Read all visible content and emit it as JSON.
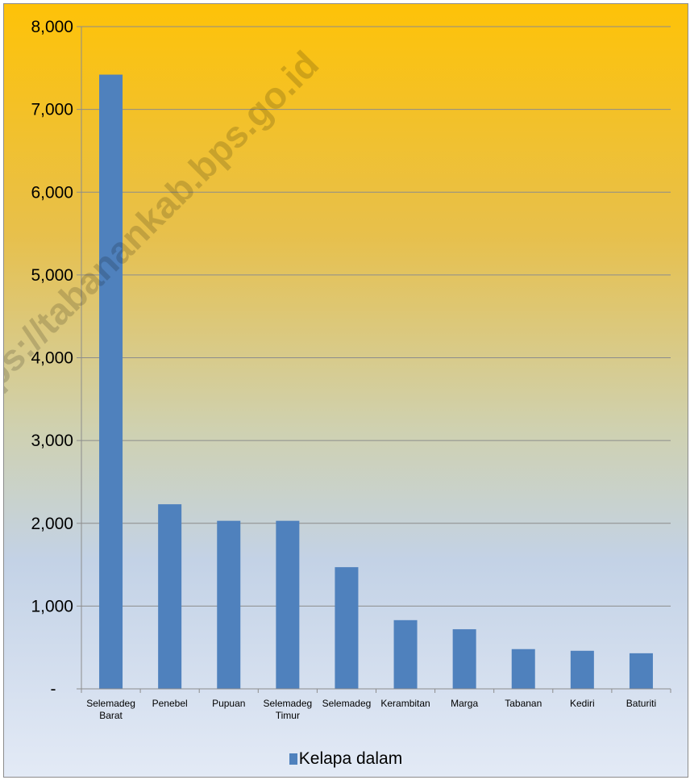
{
  "watermark": "https://tabanankab.bps.go.id",
  "chart_data": {
    "type": "bar",
    "categories": [
      [
        "Selemadeg",
        "Barat"
      ],
      [
        "Penebel"
      ],
      [
        "Pupuan"
      ],
      [
        "Selemadeg",
        "Timur"
      ],
      [
        "Selemadeg"
      ],
      [
        "Kerambitan"
      ],
      [
        "Marga"
      ],
      [
        "Tabanan"
      ],
      [
        "Kediri"
      ],
      [
        "Baturiti"
      ]
    ],
    "series": [
      {
        "name": "Kelapa dalam",
        "color": "#4f81bd",
        "values": [
          7420,
          2230,
          2030,
          2030,
          1470,
          830,
          720,
          480,
          460,
          430
        ]
      }
    ],
    "ylim": [
      0,
      8000
    ],
    "yticks": [
      0,
      1000,
      2000,
      3000,
      4000,
      5000,
      6000,
      7000,
      8000
    ],
    "ytick_labels": [
      "-",
      "1,000",
      "2,000",
      "3,000",
      "4,000",
      "5,000",
      "6,000",
      "7,000",
      "8,000"
    ],
    "grid": true,
    "legend_position": "bottom"
  }
}
